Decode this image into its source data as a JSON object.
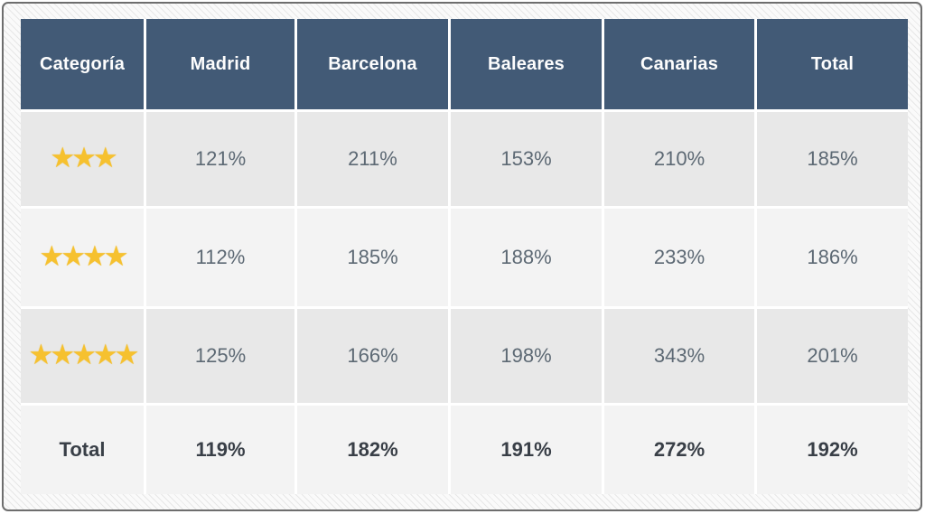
{
  "table": {
    "columns": [
      "Categoría",
      "Madrid",
      "Barcelona",
      "Baleares",
      "Canarias",
      "Total"
    ],
    "rows": [
      {
        "star_count": 3,
        "stars": "★★★",
        "values": [
          "121%",
          "211%",
          "153%",
          "210%",
          "185%"
        ]
      },
      {
        "star_count": 4,
        "stars": "★★★★",
        "values": [
          "112%",
          "185%",
          "188%",
          "233%",
          "186%"
        ]
      },
      {
        "star_count": 5,
        "stars": "★★★★★",
        "values": [
          "125%",
          "166%",
          "198%",
          "343%",
          "201%"
        ]
      }
    ],
    "total": {
      "label": "Total",
      "values": [
        "119%",
        "182%",
        "191%",
        "272%",
        "192%"
      ]
    }
  },
  "colors": {
    "header_bg": "#425a76",
    "header_text": "#fdfdfd",
    "row_odd_bg": "#e8e8e8",
    "row_even_bg": "#f3f3f3",
    "value_text": "#5d6974",
    "total_text": "#393f47",
    "star": "#f6c12f",
    "frame_border": "#6e6e6e"
  },
  "chart_data": {
    "type": "table",
    "title": "",
    "unit": "%",
    "columns": [
      "Categoría",
      "Madrid",
      "Barcelona",
      "Baleares",
      "Canarias",
      "Total"
    ],
    "rows": [
      {
        "category": "3 estrellas",
        "Madrid": 121,
        "Barcelona": 211,
        "Baleares": 153,
        "Canarias": 210,
        "Total": 185
      },
      {
        "category": "4 estrellas",
        "Madrid": 112,
        "Barcelona": 185,
        "Baleares": 188,
        "Canarias": 233,
        "Total": 186
      },
      {
        "category": "5 estrellas",
        "Madrid": 125,
        "Barcelona": 166,
        "Baleares": 198,
        "Canarias": 343,
        "Total": 201
      },
      {
        "category": "Total",
        "Madrid": 119,
        "Barcelona": 182,
        "Baleares": 191,
        "Canarias": 272,
        "Total": 192
      }
    ]
  }
}
